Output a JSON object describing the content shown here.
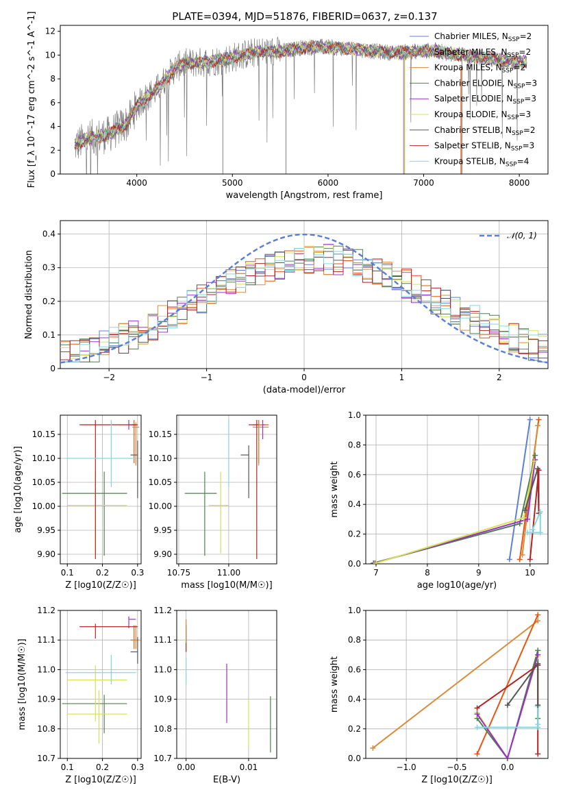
{
  "figure_title": "PLATE=0394, MJD=51876, FIBERID=0637, z=0.137",
  "models": [
    {
      "name": "Chabrier MILES",
      "nssp": "2",
      "color": "#5b7fd6"
    },
    {
      "name": "Salpeter MILES",
      "nssp": "2",
      "color": "#e6550d"
    },
    {
      "name": "Kroupa MILES",
      "nssp": "2",
      "color": "#d98b3a"
    },
    {
      "name": "Chabrier ELODIE",
      "nssp": "3",
      "color": "#4e7f4e"
    },
    {
      "name": "Salpeter ELODIE",
      "nssp": "3",
      "color": "#9b30c9"
    },
    {
      "name": "Kroupa ELODIE",
      "nssp": "3",
      "color": "#d4e157"
    },
    {
      "name": "Chabrier STELIB",
      "nssp": "2",
      "color": "#555555"
    },
    {
      "name": "Salpeter STELIB",
      "nssp": "3",
      "color": "#b22222"
    },
    {
      "name": "Kroupa STELIB",
      "nssp": "4",
      "color": "#80d8e0"
    }
  ],
  "chart_data": [
    {
      "id": "spectrum",
      "type": "line",
      "title": "PLATE=0394, MJD=51876, FIBERID=0637, z=0.137",
      "xlabel": "wavelength [Angstrom, rest frame]",
      "ylabel": "Flux [f_λ 10^-17 erg cm^-2 s^-1 A^-1]",
      "xlim": [
        3200,
        8300
      ],
      "ylim": [
        0,
        12.5
      ],
      "xticks": [
        4000,
        5000,
        6000,
        7000,
        8000
      ],
      "yticks": [
        0,
        2,
        4,
        6,
        8,
        10,
        12
      ],
      "continuum_x": [
        3350,
        3500,
        3700,
        3900,
        4000,
        4100,
        4200,
        4300,
        4400,
        4500,
        4700,
        4900,
        5100,
        5300,
        5500,
        5700,
        5900,
        6100,
        6300,
        6500,
        6700,
        6900,
        7100,
        7300,
        7500,
        7700,
        7900,
        8080
      ],
      "continuum_y": [
        2.4,
        3.0,
        3.3,
        4.3,
        5.7,
        6.5,
        7.0,
        8.0,
        8.9,
        9.3,
        9.4,
        9.6,
        10.0,
        10.3,
        10.3,
        10.6,
        10.7,
        10.6,
        10.5,
        10.3,
        10.2,
        10.3,
        10.4,
        10.1,
        9.9,
        9.7,
        9.5,
        9.4
      ],
      "legend_position": "top-right"
    },
    {
      "id": "residual-histogram",
      "type": "bar",
      "xlabel": "(data-model)/error",
      "ylabel": "Normed distribution",
      "xlim": [
        -2.5,
        2.5
      ],
      "ylim": [
        0,
        0.44
      ],
      "xticks": [
        -2,
        -1,
        0,
        1,
        2
      ],
      "yticks": [
        0.0,
        0.1,
        0.2,
        0.3,
        0.4
      ],
      "bin_width": 0.1,
      "legend_label": "𝒩(0, 1)",
      "reference_curve": "normal(0,1)",
      "reference_color": "#5b7fd6",
      "legend_position": "top-right"
    },
    {
      "id": "age-vs-Z",
      "type": "scatter",
      "xlabel": "Z [log10(Z/Z☉)]",
      "ylabel": "age [log10(age/yr)]",
      "xlim": [
        0.08,
        0.31
      ],
      "ylim": [
        9.88,
        10.19
      ],
      "xticks": [
        0.1,
        0.2,
        0.3
      ],
      "yticks": [
        9.9,
        9.95,
        10.0,
        10.05,
        10.1,
        10.15
      ],
      "points": [
        {
          "model": 1,
          "x": 0.29,
          "y": 10.17,
          "xerr": [
            0.01,
            0.01
          ],
          "yerr": [
            0.08,
            0.01
          ]
        },
        {
          "model": 2,
          "x": 0.295,
          "y": 10.165,
          "xerr": [
            0.01,
            0.01
          ],
          "yerr": [
            0.08,
            0.01
          ]
        },
        {
          "model": 3,
          "x": 0.205,
          "y": 10.027,
          "xerr": [
            0.12,
            0.065
          ],
          "yerr": [
            0.13,
            0.045
          ]
        },
        {
          "model": 4,
          "x": 0.275,
          "y": 10.17,
          "xerr": [
            0.0,
            0.02
          ],
          "yerr": [
            0.01,
            0.01
          ]
        },
        {
          "model": 5,
          "x": 0.18,
          "y": 10.002,
          "xerr": [
            0.08,
            0.09
          ],
          "yerr": [
            0.1,
            0.07
          ]
        },
        {
          "model": 6,
          "x": 0.3,
          "y": 10.107,
          "xerr": [
            0.02,
            0.0
          ],
          "yerr": [
            0.09,
            0.03
          ]
        },
        {
          "model": 7,
          "x": 0.18,
          "y": 10.17,
          "xerr": [
            0.045,
            0.12
          ],
          "yerr": [
            0.28,
            0.01
          ]
        },
        {
          "model": 8,
          "x": 0.225,
          "y": 10.1,
          "xerr": [
            0.13,
            0.07
          ],
          "yerr": [
            0.06,
            0.08
          ]
        }
      ]
    },
    {
      "id": "age-vs-mass",
      "type": "scatter",
      "xlabel": "mass [log10(M/M☉)]",
      "ylabel": "",
      "xlim": [
        10.74,
        11.24
      ],
      "ylim": [
        9.88,
        10.19
      ],
      "xticks": [
        10.75,
        11.0
      ],
      "xticklabels": [
        "10.75",
        "11.00"
      ],
      "yticks": [
        9.9,
        9.95,
        10.0,
        10.05,
        10.1,
        10.15
      ],
      "points": [
        {
          "model": 1,
          "x": 11.15,
          "y": 10.17,
          "xerr": [
            0.03,
            0.05
          ],
          "yerr": [
            0.08,
            0.01
          ]
        },
        {
          "model": 2,
          "x": 11.15,
          "y": 10.165,
          "xerr": [
            0.03,
            0.05
          ],
          "yerr": [
            0.08,
            0.01
          ]
        },
        {
          "model": 3,
          "x": 10.88,
          "y": 10.027,
          "xerr": [
            0.1,
            0.06
          ],
          "yerr": [
            0.13,
            0.045
          ]
        },
        {
          "model": 4,
          "x": 11.17,
          "y": 10.17,
          "xerr": [
            0.0,
            0.01
          ],
          "yerr": [
            0.03,
            0.01
          ]
        },
        {
          "model": 5,
          "x": 10.96,
          "y": 10.002,
          "xerr": [
            0.06,
            0.04
          ],
          "yerr": [
            0.1,
            0.07
          ]
        },
        {
          "model": 6,
          "x": 11.1,
          "y": 10.107,
          "xerr": [
            0.04,
            0.0
          ],
          "yerr": [
            0.09,
            0.02
          ]
        },
        {
          "model": 7,
          "x": 11.14,
          "y": 10.17,
          "xerr": [
            0.04,
            0.01
          ],
          "yerr": [
            0.28,
            0.01
          ]
        },
        {
          "model": 8,
          "x": 11.0,
          "y": 10.1,
          "xerr": [
            0.0,
            0.0
          ],
          "yerr": [
            0.06,
            0.08
          ]
        }
      ]
    },
    {
      "id": "massweight-vs-age",
      "type": "line",
      "xlabel": "age log10(age/yr)",
      "ylabel": "mass weight",
      "xlim": [
        6.8,
        10.35
      ],
      "ylim": [
        0,
        1.0
      ],
      "xticks": [
        7,
        8,
        9,
        10
      ],
      "yticks": [
        0.0,
        0.2,
        0.4,
        0.6,
        0.8,
        1.0
      ],
      "series": [
        {
          "model": 0,
          "x": [
            9.6,
            10.0
          ],
          "y": [
            0.03,
            0.97
          ]
        },
        {
          "model": 1,
          "x": [
            9.8,
            10.17
          ],
          "y": [
            0.03,
            0.97
          ]
        },
        {
          "model": 2,
          "x": [
            9.85,
            10.15
          ],
          "y": [
            0.06,
            0.93
          ]
        },
        {
          "model": 3,
          "x": [
            6.95,
            9.8,
            10.1
          ],
          "y": [
            0.005,
            0.27,
            0.73
          ]
        },
        {
          "model": 4,
          "x": [
            6.98,
            9.95,
            10.1
          ],
          "y": [
            0.005,
            0.3,
            0.7
          ]
        },
        {
          "model": 5,
          "x": [
            7.0,
            9.88,
            10.08
          ],
          "y": [
            0.005,
            0.31,
            0.69
          ]
        },
        {
          "model": 6,
          "x": [
            9.9,
            10.15,
            10.17
          ],
          "y": [
            0.36,
            0.64,
            0.34
          ]
        },
        {
          "model": 7,
          "x": [
            10.0,
            10.17,
            10.17
          ],
          "y": [
            0.03,
            0.63,
            0.34
          ]
        },
        {
          "model": 8,
          "x": [
            9.95,
            10.2,
            10.2,
            10.05
          ],
          "y": [
            0.21,
            0.21,
            0.35,
            0.23
          ]
        }
      ]
    },
    {
      "id": "mass-vs-Z",
      "type": "scatter",
      "xlabel": "Z [log10(Z/Z☉)]",
      "ylabel": "mass [log10(M/M☉)]",
      "xlim": [
        0.08,
        0.31
      ],
      "ylim": [
        10.7,
        11.2
      ],
      "xticks": [
        0.1,
        0.2,
        0.3
      ],
      "yticks": [
        10.7,
        10.8,
        10.9,
        11.0,
        11.1,
        11.2
      ],
      "points": [
        {
          "model": 1,
          "x": 0.29,
          "y": 11.1,
          "xerr": [
            0.01,
            0.01
          ],
          "yerr": [
            0.03,
            0.05
          ]
        },
        {
          "model": 2,
          "x": 0.295,
          "y": 11.1,
          "xerr": [
            0.01,
            0.01
          ],
          "yerr": [
            0.03,
            0.05
          ]
        },
        {
          "model": 3,
          "x": 0.205,
          "y": 10.885,
          "xerr": [
            0.12,
            0.065
          ],
          "yerr": [
            0.1,
            0.03
          ]
        },
        {
          "model": 4,
          "x": 0.275,
          "y": 11.17,
          "xerr": [
            0.0,
            0.02
          ],
          "yerr": [
            0.03,
            0.01
          ]
        },
        {
          "model": 5,
          "x": 0.18,
          "y": 10.965,
          "xerr": [
            0.08,
            0.09
          ],
          "yerr": [
            0.14,
            0.05
          ]
        },
        {
          "model": 6,
          "x": 0.3,
          "y": 11.06,
          "xerr": [
            0.02,
            0.0
          ],
          "yerr": [
            0.04,
            0.05
          ]
        },
        {
          "model": 7,
          "x": 0.18,
          "y": 11.145,
          "xerr": [
            0.045,
            0.12
          ],
          "yerr": [
            0.04,
            0.01
          ]
        },
        {
          "model": 8,
          "x": 0.225,
          "y": 10.99,
          "xerr": [
            0.13,
            0.07
          ],
          "yerr": [
            0.04,
            0.06
          ]
        },
        {
          "model": 5,
          "x": 0.19,
          "y": 10.85,
          "xerr": [
            0.09,
            0.08
          ],
          "yerr": [
            0.1,
            0.08
          ]
        }
      ]
    },
    {
      "id": "mass-vs-ebv",
      "type": "scatter",
      "xlabel": "E(B-V)",
      "ylabel": "",
      "xlim": [
        -0.0015,
        0.0145
      ],
      "ylim": [
        10.7,
        11.2
      ],
      "xticks": [
        0.0,
        0.01
      ],
      "xticklabels": [
        "0.00",
        "0.01"
      ],
      "yticks": [
        10.7,
        10.8,
        10.9,
        11.0,
        11.1,
        11.2
      ],
      "points": [
        {
          "model": 7,
          "x": 0.0,
          "y": 11.1,
          "xerr": [
            0,
            0
          ],
          "yerr": [
            0.04,
            0.05
          ]
        },
        {
          "model": 2,
          "x": 0.0,
          "y": 11.12,
          "xerr": [
            0,
            0
          ],
          "yerr": [
            0.03,
            0.05
          ]
        },
        {
          "model": 8,
          "x": 0.0,
          "y": 11.0,
          "xerr": [
            0,
            0
          ],
          "yerr": [
            0.05,
            0.04
          ]
        },
        {
          "model": 4,
          "x": 0.0065,
          "y": 10.92,
          "xerr": [
            0,
            0
          ],
          "yerr": [
            0.1,
            0.1
          ]
        },
        {
          "model": 5,
          "x": 0.01,
          "y": 10.82,
          "xerr": [
            0,
            0
          ],
          "yerr": [
            0.08,
            0.08
          ]
        },
        {
          "model": 3,
          "x": 0.0135,
          "y": 10.82,
          "xerr": [
            0,
            0
          ],
          "yerr": [
            0.1,
            0.09
          ]
        }
      ]
    },
    {
      "id": "massweight-vs-Z",
      "type": "line",
      "xlabel": "Z [log10(Z/Z☉)]",
      "ylabel": "mass weight",
      "xlim": [
        -1.4,
        0.4
      ],
      "ylim": [
        0,
        1.0
      ],
      "xticks": [
        -1.0,
        -0.5,
        0.0
      ],
      "xticklabels": [
        "−1.0",
        "−0.5",
        "0.0"
      ],
      "yticks": [
        0.0,
        0.2,
        0.4,
        0.6,
        0.8,
        1.0
      ],
      "series": [
        {
          "model": 2,
          "x": [
            -1.33,
            0.3
          ],
          "y": [
            0.07,
            0.93
          ]
        },
        {
          "model": 1,
          "x": [
            -0.3,
            0.3
          ],
          "y": [
            0.03,
            0.97
          ]
        },
        {
          "model": 3,
          "x": [
            -0.3,
            0.0,
            0.3,
            0.3
          ],
          "y": [
            0.27,
            0.0,
            0.73,
            0.27
          ]
        },
        {
          "model": 5,
          "x": [
            -0.3,
            0.0,
            0.3
          ],
          "y": [
            0.31,
            0.0,
            0.69
          ]
        },
        {
          "model": 4,
          "x": [
            -0.3,
            0.0,
            0.3
          ],
          "y": [
            0.3,
            0.0,
            0.7
          ]
        },
        {
          "model": 7,
          "x": [
            -0.3,
            0.3,
            0.3,
            0.3
          ],
          "y": [
            0.34,
            0.63,
            0.03,
            0.63
          ]
        },
        {
          "model": 8,
          "x": [
            -0.3,
            0.3,
            0.3,
            0.3
          ],
          "y": [
            0.21,
            0.21,
            0.35,
            0.23
          ]
        },
        {
          "model": 6,
          "x": [
            0.0,
            0.3,
            0.3
          ],
          "y": [
            0.36,
            0.64,
            0.36
          ]
        }
      ]
    }
  ]
}
